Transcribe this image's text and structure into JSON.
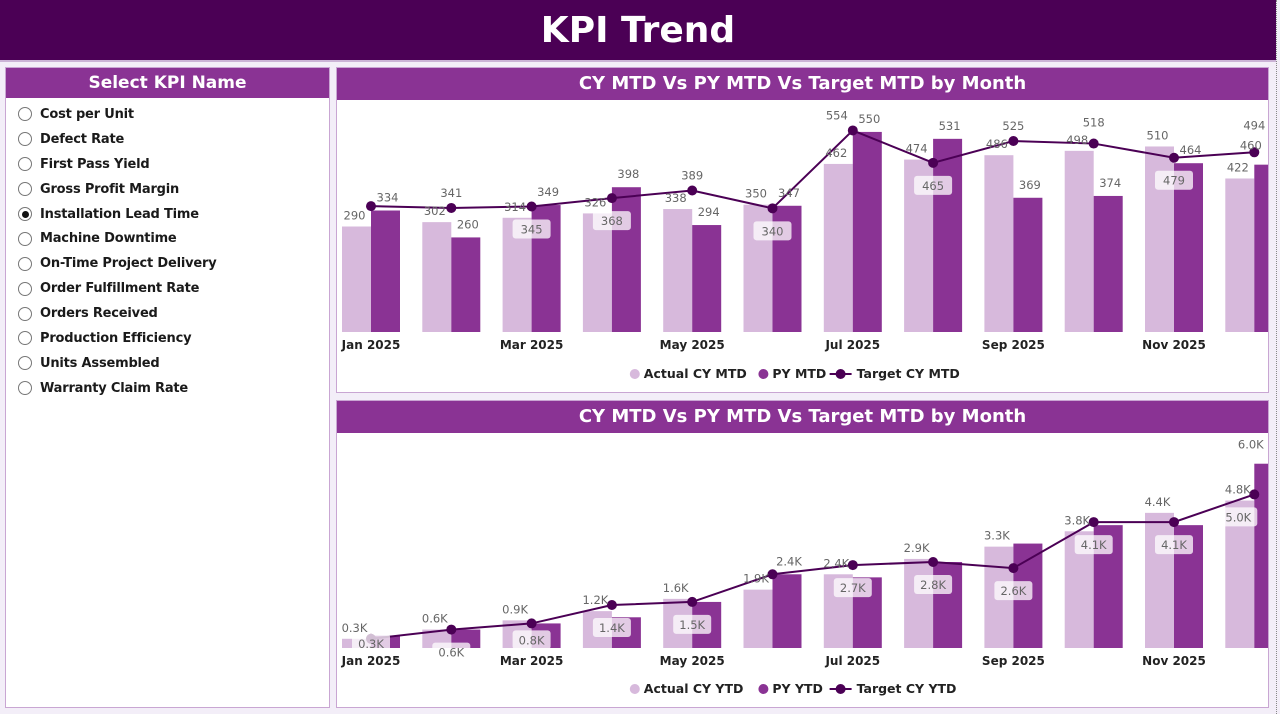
{
  "header": {
    "title": "KPI Trend"
  },
  "slicer": {
    "title": "Select KPI Name",
    "items": [
      {
        "label": "Cost per Unit",
        "selected": false
      },
      {
        "label": "Defect Rate",
        "selected": false
      },
      {
        "label": "First Pass Yield",
        "selected": false
      },
      {
        "label": "Gross Profit Margin",
        "selected": false
      },
      {
        "label": "Installation Lead Time",
        "selected": true
      },
      {
        "label": "Machine Downtime",
        "selected": false
      },
      {
        "label": "On-Time Project Delivery",
        "selected": false
      },
      {
        "label": "Order Fulfillment Rate",
        "selected": false
      },
      {
        "label": "Orders Received",
        "selected": false
      },
      {
        "label": "Production Efficiency",
        "selected": false
      },
      {
        "label": "Units Assembled",
        "selected": false
      },
      {
        "label": "Warranty Claim Rate",
        "selected": false
      }
    ]
  },
  "colors": {
    "header": "#4b0055",
    "panel_header": "#8a3394",
    "actual": "#d7b9dc",
    "py": "#8a3394",
    "target": "#4b0055"
  },
  "chart_data": [
    {
      "type": "bar",
      "title": "CY MTD Vs PY MTD Vs Target MTD by Month",
      "tick_labels": [
        "Jan 2025",
        "",
        "Mar 2025",
        "",
        "May 2025",
        "",
        "Jul 2025",
        "",
        "Sep 2025",
        "",
        "Nov 2025",
        ""
      ],
      "ylim": [
        0,
        635
      ],
      "legend_position": "bottom",
      "series": [
        {
          "name": "Actual CY MTD",
          "kind": "bar",
          "values": [
            290,
            302,
            314,
            326,
            338,
            350,
            462,
            474,
            486,
            498,
            510,
            422
          ],
          "labels": [
            "290",
            "302",
            "314",
            "326",
            "338",
            "350",
            "462",
            "474",
            "486",
            "498",
            "510",
            "422"
          ]
        },
        {
          "name": "PY MTD",
          "kind": "bar",
          "values": [
            334,
            260,
            349,
            398,
            294,
            347,
            550,
            531,
            369,
            374,
            464,
            460
          ],
          "labels": [
            "334",
            "260",
            "349",
            "398",
            "294",
            "347",
            "550",
            "531",
            "369",
            "374",
            "464",
            "460"
          ]
        },
        {
          "name": "Target CY MTD",
          "kind": "line",
          "values": [
            346,
            341,
            345,
            368,
            389,
            340,
            554,
            465,
            525,
            518,
            479,
            494
          ],
          "labels": [
            null,
            "341",
            "345",
            "368",
            "389",
            "340",
            "554",
            "465",
            "525",
            "518",
            "479",
            "494"
          ]
        }
      ]
    },
    {
      "type": "bar",
      "title": "CY MTD Vs PY MTD Vs Target MTD by Month",
      "tick_labels": [
        "Jan 2025",
        "",
        "Mar 2025",
        "",
        "May 2025",
        "",
        "Jul 2025",
        "",
        "Sep 2025",
        "",
        "Nov 2025",
        ""
      ],
      "ylim": [
        0,
        7000
      ],
      "legend_position": "bottom",
      "series": [
        {
          "name": "Actual CY YTD",
          "kind": "bar",
          "values": [
            300,
            600,
            900,
            1200,
            1600,
            1900,
            2400,
            2900,
            3300,
            3800,
            4400,
            4800
          ],
          "labels": [
            "0.3K",
            "0.6K",
            "0.9K",
            "1.2K",
            "1.6K",
            "1.9K",
            "2.4K",
            "2.9K",
            "3.3K",
            "3.8K",
            "4.4K",
            "4.8K"
          ]
        },
        {
          "name": "PY YTD",
          "kind": "bar",
          "values": [
            400,
            600,
            800,
            1000,
            1500,
            2400,
            2300,
            2800,
            3400,
            4000,
            4000,
            6000
          ],
          "labels": [
            null,
            null,
            null,
            null,
            null,
            "2.4K",
            null,
            null,
            null,
            null,
            null,
            "6.0K"
          ]
        },
        {
          "name": "Target CY YTD",
          "kind": "line",
          "values": [
            300,
            600,
            800,
            1400,
            1500,
            2400,
            2700,
            2800,
            2600,
            4100,
            4100,
            5000
          ],
          "labels": [
            "0.3K",
            "0.6K",
            "0.8K",
            "1.4K",
            "1.5K",
            null,
            "2.7K",
            "2.8K",
            "2.6K",
            "4.1K",
            "4.1K",
            "5.0K"
          ]
        }
      ]
    }
  ]
}
